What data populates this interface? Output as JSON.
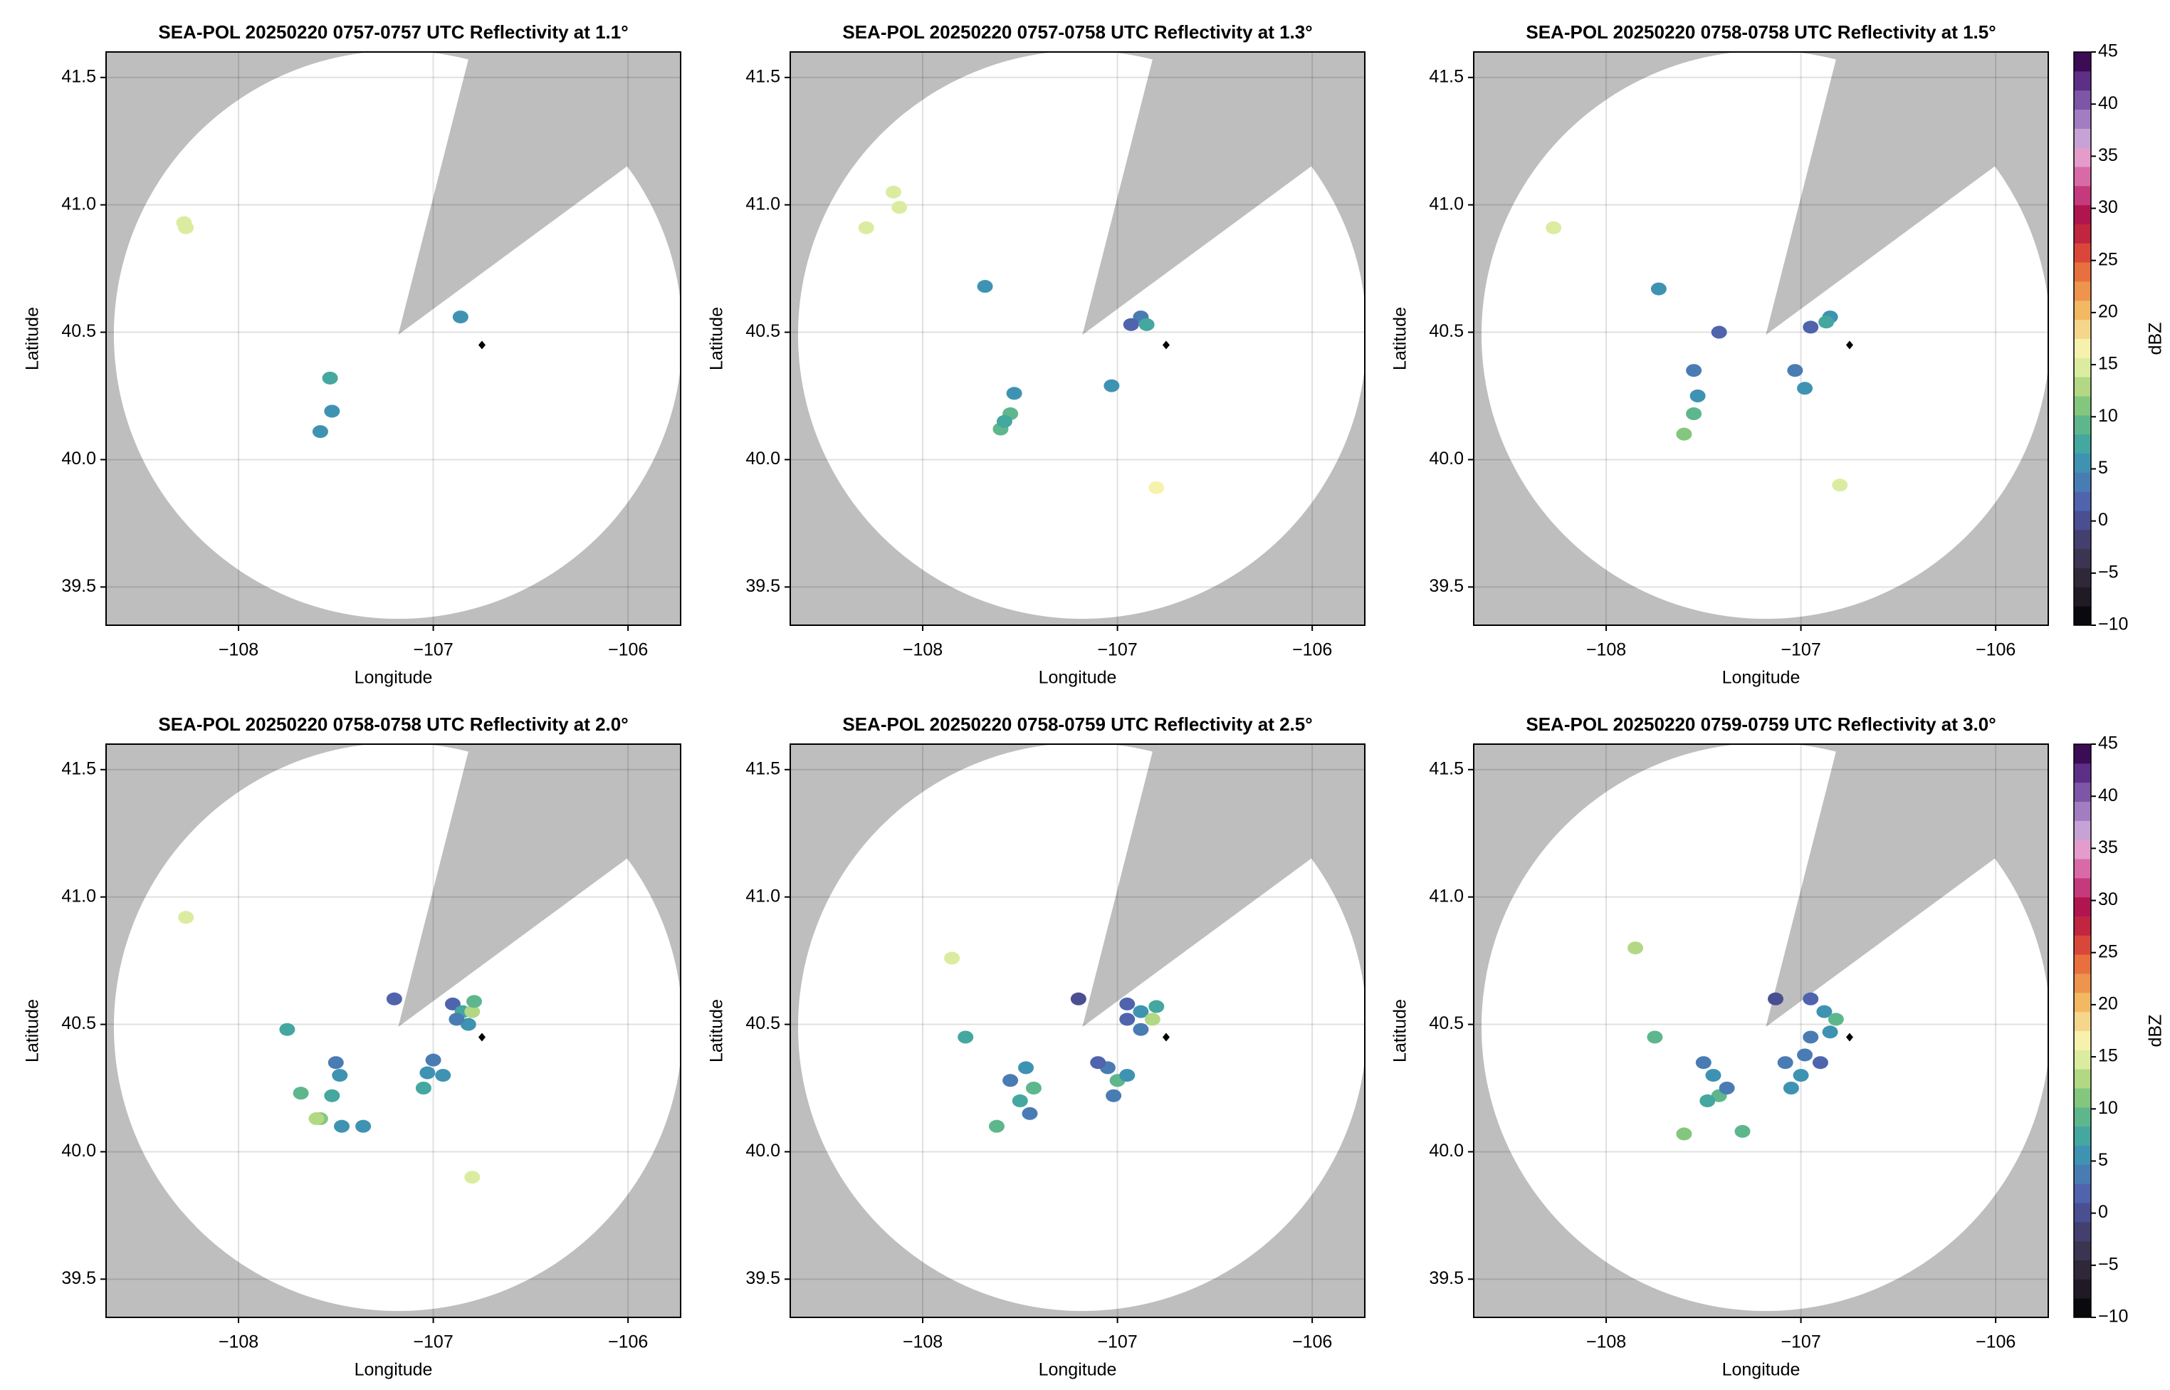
{
  "chart_data": [
    {
      "type": "map",
      "title": "SEA-POL 20250220 0757-0757 UTC Reflectivity at 1.1°",
      "xlabel": "Longitude",
      "ylabel": "Latitude",
      "xlim": [
        -108.68,
        -105.73
      ],
      "ylim": [
        39.35,
        41.6
      ],
      "xticks": [
        {
          "value": -108,
          "label": "−108"
        },
        {
          "value": -107,
          "label": "−107"
        },
        {
          "value": -106,
          "label": "−106"
        }
      ],
      "yticks": [
        39.5,
        {
          "value": 40,
          "label": "40.0"
        },
        40.5,
        {
          "value": 41,
          "label": "41.0"
        },
        41.5
      ],
      "grid": true,
      "site": {
        "x": -106.75,
        "y": 40.45
      },
      "echoes": {
        "x": [
          -108.28,
          -108.27,
          -106.86,
          -107.58,
          -107.52,
          -107.53
        ],
        "y": [
          40.93,
          40.91,
          40.56,
          40.11,
          40.19,
          40.32
        ],
        "values": [
          14,
          15,
          5,
          6,
          5,
          8
        ]
      }
    },
    {
      "type": "map",
      "title": "SEA-POL 20250220 0757-0758 UTC Reflectivity at 1.3°",
      "xlabel": "Longitude",
      "ylabel": "Latitude",
      "xlim": [
        -108.68,
        -105.73
      ],
      "ylim": [
        39.35,
        41.6
      ],
      "xticks": [
        {
          "value": -108,
          "label": "−108"
        },
        {
          "value": -107,
          "label": "−107"
        },
        {
          "value": -106,
          "label": "−106"
        }
      ],
      "yticks": [
        39.5,
        {
          "value": 40,
          "label": "40.0"
        },
        40.5,
        {
          "value": 41,
          "label": "41.0"
        },
        41.5
      ],
      "grid": true,
      "site": {
        "x": -106.75,
        "y": 40.45
      },
      "echoes": {
        "x": [
          -108.29,
          -108.12,
          -108.15,
          -107.68,
          -106.88,
          -106.85,
          -106.93,
          -107.53,
          -107.55,
          -107.6,
          -107.58,
          -107.03,
          -106.8
        ],
        "y": [
          40.91,
          40.99,
          41.05,
          40.68,
          40.56,
          40.53,
          40.53,
          40.26,
          40.18,
          40.12,
          40.15,
          40.29,
          39.89
        ],
        "values": [
          15,
          14,
          15,
          5,
          3,
          8,
          2,
          6,
          9,
          10,
          8,
          5,
          16
        ]
      }
    },
    {
      "type": "map",
      "title": "SEA-POL 20250220 0758-0758 UTC Reflectivity at 1.5°",
      "xlabel": "Longitude",
      "ylabel": "Latitude",
      "xlim": [
        -108.68,
        -105.73
      ],
      "ylim": [
        39.35,
        41.6
      ],
      "xticks": [
        {
          "value": -108,
          "label": "−108"
        },
        {
          "value": -107,
          "label": "−107"
        },
        {
          "value": -106,
          "label": "−106"
        }
      ],
      "yticks": [
        39.5,
        {
          "value": 40,
          "label": "40.0"
        },
        40.5,
        {
          "value": 41,
          "label": "41.0"
        },
        41.5
      ],
      "grid": true,
      "site": {
        "x": -106.75,
        "y": 40.45
      },
      "echoes": {
        "x": [
          -108.27,
          -107.73,
          -107.55,
          -107.53,
          -107.55,
          -107.6,
          -106.85,
          -106.87,
          -106.95,
          -107.03,
          -106.98,
          -106.8,
          -107.42
        ],
        "y": [
          40.91,
          40.67,
          40.35,
          40.25,
          40.18,
          40.1,
          40.56,
          40.54,
          40.52,
          40.35,
          40.28,
          39.9,
          40.5
        ],
        "values": [
          15,
          5,
          3,
          6,
          9,
          11,
          5,
          8,
          2,
          3,
          5,
          14,
          2
        ]
      },
      "colorbar": {
        "label": "dBZ",
        "lim": [
          -10,
          45
        ],
        "ticks": [
          {
            "value": -10,
            "label": "−10"
          },
          {
            "value": -5,
            "label": "−5"
          },
          0,
          5,
          10,
          15,
          20,
          25,
          30,
          35,
          40,
          45
        ],
        "colors": [
          "#0a0a0e",
          "#1f1a24",
          "#2e2838",
          "#3b3552",
          "#433f6e",
          "#4a4f92",
          "#4f64ad",
          "#4a7cb4",
          "#3f93b2",
          "#44a7a0",
          "#5eb78c",
          "#85c67f",
          "#b3d884",
          "#dbeca0",
          "#f6f2ae",
          "#f5d68a",
          "#f2b864",
          "#ee944c",
          "#e8703e",
          "#d9473a",
          "#c2253f",
          "#b01550",
          "#c53a7c",
          "#d96aa8",
          "#e39ccb",
          "#c6a2d6",
          "#a27dc1",
          "#7e56a8",
          "#5d2f86",
          "#3c0d55"
        ]
      }
    },
    {
      "type": "map",
      "title": "SEA-POL 20250220 0758-0758 UTC Reflectivity at 2.0°",
      "xlabel": "Longitude",
      "ylabel": "Latitude",
      "xlim": [
        -108.68,
        -105.73
      ],
      "ylim": [
        39.35,
        41.6
      ],
      "xticks": [
        {
          "value": -108,
          "label": "−108"
        },
        {
          "value": -107,
          "label": "−107"
        },
        {
          "value": -106,
          "label": "−106"
        }
      ],
      "yticks": [
        39.5,
        {
          "value": 40,
          "label": "40.0"
        },
        40.5,
        {
          "value": 41,
          "label": "41.0"
        },
        41.5
      ],
      "grid": true,
      "site": {
        "x": -106.75,
        "y": 40.45
      },
      "echoes": {
        "x": [
          -106.9,
          -106.85,
          -106.8,
          -106.82,
          -106.88,
          -106.79,
          -107.0,
          -107.03,
          -106.95,
          -107.05,
          -107.5,
          -107.48,
          -107.52,
          -107.58,
          -107.47,
          -107.68,
          -107.75,
          -107.36,
          -108.27,
          -106.8,
          -107.2,
          -107.6
        ],
        "y": [
          40.58,
          40.55,
          40.55,
          40.5,
          40.52,
          40.59,
          40.36,
          40.31,
          40.3,
          40.25,
          40.35,
          40.3,
          40.22,
          40.13,
          40.1,
          40.23,
          40.48,
          40.1,
          40.92,
          39.9,
          40.6,
          40.13
        ],
        "values": [
          2,
          8,
          12,
          6,
          4,
          10,
          3,
          5,
          6,
          7,
          3,
          5,
          8,
          11,
          6,
          10,
          7,
          5,
          15,
          14,
          1,
          12
        ]
      }
    },
    {
      "type": "map",
      "title": "SEA-POL 20250220 0758-0759 UTC Reflectivity at 2.5°",
      "xlabel": "Longitude",
      "ylabel": "Latitude",
      "xlim": [
        -108.68,
        -105.73
      ],
      "ylim": [
        39.35,
        41.6
      ],
      "xticks": [
        {
          "value": -108,
          "label": "−108"
        },
        {
          "value": -107,
          "label": "−107"
        },
        {
          "value": -106,
          "label": "−106"
        }
      ],
      "yticks": [
        39.5,
        {
          "value": 40,
          "label": "40.0"
        },
        40.5,
        {
          "value": 41,
          "label": "41.0"
        },
        41.5
      ],
      "grid": true,
      "site": {
        "x": -106.75,
        "y": 40.45
      },
      "echoes": {
        "x": [
          -107.2,
          -106.95,
          -106.88,
          -106.82,
          -106.8,
          -106.88,
          -106.95,
          -107.05,
          -107.0,
          -106.95,
          -107.02,
          -107.1,
          -107.47,
          -107.43,
          -107.5,
          -107.45,
          -107.55,
          -107.78,
          -107.62,
          -107.85
        ],
        "y": [
          40.6,
          40.58,
          40.55,
          40.52,
          40.57,
          40.48,
          40.52,
          40.33,
          40.28,
          40.3,
          40.22,
          40.35,
          40.33,
          40.25,
          40.2,
          40.15,
          40.28,
          40.45,
          40.1,
          40.76
        ],
        "values": [
          0,
          1,
          5,
          12,
          8,
          3,
          2,
          4,
          9,
          6,
          3,
          2,
          5,
          9,
          7,
          4,
          3,
          8,
          10,
          14
        ]
      }
    },
    {
      "type": "map",
      "title": "SEA-POL 20250220 0759-0759 UTC Reflectivity at 3.0°",
      "xlabel": "Longitude",
      "ylabel": "Latitude",
      "xlim": [
        -108.68,
        -105.73
      ],
      "ylim": [
        39.35,
        41.6
      ],
      "xticks": [
        {
          "value": -108,
          "label": "−108"
        },
        {
          "value": -107,
          "label": "−107"
        },
        {
          "value": -106,
          "label": "−106"
        }
      ],
      "yticks": [
        39.5,
        {
          "value": 40,
          "label": "40.0"
        },
        40.5,
        {
          "value": 41,
          "label": "41.0"
        },
        41.5
      ],
      "grid": true,
      "site": {
        "x": -106.75,
        "y": 40.45
      },
      "echoes": {
        "x": [
          -107.13,
          -106.95,
          -106.88,
          -106.82,
          -106.85,
          -106.95,
          -106.98,
          -106.9,
          -107.0,
          -107.08,
          -107.05,
          -107.45,
          -107.42,
          -107.48,
          -107.38,
          -107.5,
          -107.75,
          -107.85,
          -107.6,
          -107.3
        ],
        "y": [
          40.6,
          40.6,
          40.55,
          40.52,
          40.47,
          40.45,
          40.38,
          40.35,
          40.3,
          40.35,
          40.25,
          40.3,
          40.22,
          40.2,
          40.25,
          40.35,
          40.45,
          40.8,
          40.07,
          40.08
        ],
        "values": [
          0,
          2,
          6,
          10,
          5,
          3,
          4,
          2,
          6,
          3,
          5,
          5,
          9,
          7,
          3,
          4,
          9,
          13,
          11,
          10
        ]
      },
      "colorbar": {
        "label": "dBZ",
        "lim": [
          -10,
          45
        ],
        "ticks": [
          {
            "value": -10,
            "label": "−10"
          },
          {
            "value": -5,
            "label": "−5"
          },
          0,
          5,
          10,
          15,
          20,
          25,
          30,
          35,
          40,
          45
        ],
        "colors": [
          "#0a0a0e",
          "#1f1a24",
          "#2e2838",
          "#3b3552",
          "#433f6e",
          "#4a4f92",
          "#4f64ad",
          "#4a7cb4",
          "#3f93b2",
          "#44a7a0",
          "#5eb78c",
          "#85c67f",
          "#b3d884",
          "#dbeca0",
          "#f6f2ae",
          "#f5d68a",
          "#f2b864",
          "#ee944c",
          "#e8703e",
          "#d9473a",
          "#c2253f",
          "#b01550",
          "#c53a7c",
          "#d96aa8",
          "#e39ccb",
          "#c6a2d6",
          "#a27dc1",
          "#7e56a8",
          "#5d2f86",
          "#3c0d55"
        ]
      }
    }
  ]
}
